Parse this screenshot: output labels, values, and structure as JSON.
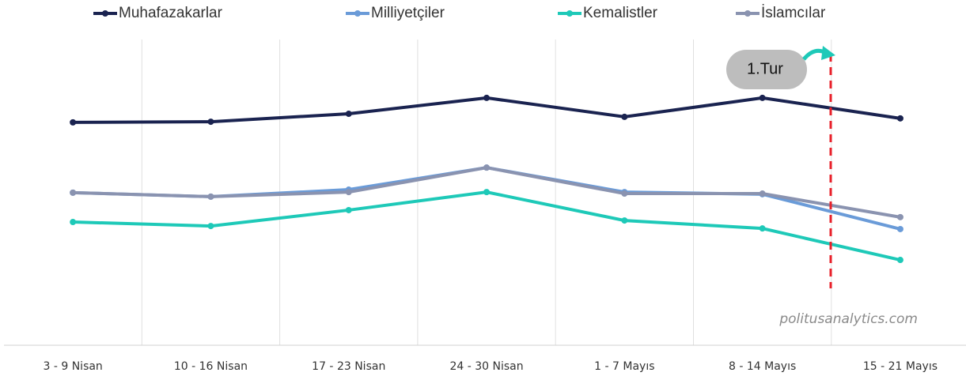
{
  "chart_data": {
    "type": "line",
    "categories": [
      "3 - 9 Nisan",
      "10 - 16 Nisan",
      "17 - 23 Nisan",
      "24 - 30 Nisan",
      "1 - 7 Mayıs",
      "8 - 14 Mayıs",
      "15 - 21 Mayıs"
    ],
    "series": [
      {
        "name": "Muhafazakarlar",
        "color": "#1a2350",
        "values": [
          72.9,
          73.1,
          75.7,
          80.9,
          74.7,
          80.9,
          74.2
        ]
      },
      {
        "name": "Milliyetçiler",
        "color": "#6a9bd8",
        "values": [
          49.9,
          48.6,
          50.9,
          58.1,
          50.1,
          49.4,
          38.0
        ]
      },
      {
        "name": "Kemalistler",
        "color": "#1ec9b8",
        "values": [
          40.3,
          39.0,
          44.2,
          50.1,
          40.8,
          38.2,
          27.9
        ]
      },
      {
        "name": "İslamcılar",
        "color": "#8a93b0",
        "values": [
          49.9,
          48.6,
          50.1,
          58.1,
          49.6,
          49.6,
          41.9
        ]
      }
    ],
    "ylim": [
      0,
      100
    ],
    "annotation": "1.Tur",
    "watermark": "politusanalytics.com",
    "legend": "top"
  }
}
